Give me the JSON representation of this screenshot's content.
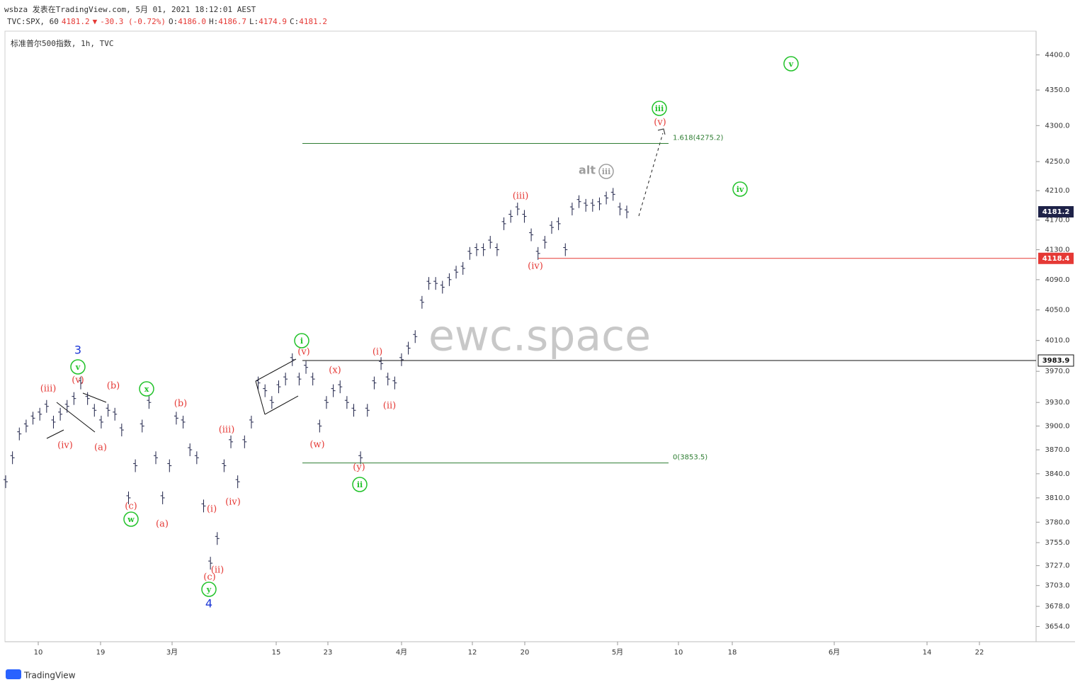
{
  "header": {
    "author_line": "wsbza 发表在TradingView.com, 5月 01, 2021 18:12:01 AEST",
    "symbol": "TVC:SPX, 60",
    "last": "4181.2",
    "arrow": "▼",
    "change": "-30.3 (-0.72%)",
    "ohlc": [
      {
        "k": "O:",
        "v": "4186.0"
      },
      {
        "k": "H:",
        "v": "4186.7"
      },
      {
        "k": "L:",
        "v": "4174.9"
      },
      {
        "k": "C:",
        "v": "4181.2"
      }
    ],
    "instrument": "标准普尔500指数, 1h, TVC"
  },
  "chart_data": {
    "type": "ohlc",
    "log_scale": true,
    "ylim": [
      3636,
      4434
    ],
    "color": "#1e2248",
    "yticks": [
      {
        "value": 4400,
        "label": "4400.0"
      },
      {
        "value": 4350,
        "label": "4350.0"
      },
      {
        "value": 4300,
        "label": "4300.0"
      },
      {
        "value": 4250,
        "label": "4250.0"
      },
      {
        "value": 4210,
        "label": "4210.0"
      },
      {
        "value": 4170,
        "label": "4170.0"
      },
      {
        "value": 4130,
        "label": "4130.0"
      },
      {
        "value": 4090,
        "label": "4090.0"
      },
      {
        "value": 4050,
        "label": "4050.0"
      },
      {
        "value": 4010,
        "label": "4010.0"
      },
      {
        "value": 3970,
        "label": "3970.0"
      },
      {
        "value": 3930,
        "label": "3930.0"
      },
      {
        "value": 3900,
        "label": "3900.0"
      },
      {
        "value": 3870,
        "label": "3870.0"
      },
      {
        "value": 3840,
        "label": "3840.0"
      },
      {
        "value": 3810,
        "label": "3810.0"
      },
      {
        "value": 3780,
        "label": "3780.0"
      },
      {
        "value": 3755,
        "label": "3755.0"
      },
      {
        "value": 3727,
        "label": "3727.0"
      },
      {
        "value": 3703,
        "label": "3703.0"
      },
      {
        "value": 3678,
        "label": "3678.0"
      },
      {
        "value": 3654,
        "label": "3654.0"
      }
    ],
    "x_labels": [
      "10",
      "19",
      "3月",
      "15",
      "23",
      "4月",
      "12",
      "20",
      "5月",
      "10",
      "18",
      "6月",
      "14",
      "22"
    ],
    "values": [
      3830,
      3860,
      3890,
      3900,
      3910,
      3915,
      3925,
      3905,
      3915,
      3925,
      3935,
      3955,
      3935,
      3920,
      3905,
      3920,
      3915,
      3895,
      3810,
      3850,
      3900,
      3930,
      3860,
      3810,
      3850,
      3910,
      3905,
      3870,
      3860,
      3800,
      3730,
      3760,
      3850,
      3880,
      3830,
      3880,
      3905,
      3955,
      3945,
      3930,
      3950,
      3960,
      3985,
      3960,
      3975,
      3960,
      3900,
      3930,
      3945,
      3950,
      3930,
      3920,
      3860,
      3920,
      3955,
      3980,
      3960,
      3955,
      3985,
      4000,
      4015,
      4060,
      4085,
      4085,
      4080,
      4090,
      4100,
      4105,
      4125,
      4130,
      4130,
      4140,
      4130,
      4165,
      4175,
      4185,
      4175,
      4150,
      4125,
      4140,
      4160,
      4165,
      4130,
      4185,
      4195,
      4190,
      4190,
      4192,
      4200,
      4205,
      4185,
      4181
    ],
    "last_price": {
      "value": 4181.2,
      "label": "4181.2"
    },
    "support": {
      "value": 4118.4,
      "label": "4118.4"
    },
    "key_level": {
      "value": 3983.9,
      "label": "3983.9"
    },
    "fib_levels": [
      {
        "value": 4275.2,
        "label": "1.618(4275.2)"
      },
      {
        "value": 3853.5,
        "label": "0(3853.5)"
      }
    ],
    "red_labels": [
      "(iii)",
      "(iv)",
      "(v)",
      "(b)",
      "(a)",
      "(c)",
      "(b)",
      "(a)",
      "(iii)",
      "(iv)",
      "(i)",
      "(ii)",
      "(c)",
      "(v)",
      "(x)",
      "(w)",
      "(y)",
      "(i)",
      "(ii)",
      "(iii)",
      "(iv)",
      "(v)"
    ],
    "green_labels": [
      "v",
      "x",
      "w",
      "y",
      "i",
      "ii",
      "iii",
      "iv",
      "v"
    ],
    "blue_labels": [
      "3",
      "4"
    ],
    "alt_label": {
      "prefix": "alt",
      "wave": "iii"
    },
    "watermark": "ewc.space"
  },
  "footer": {
    "brand": "TradingView"
  }
}
